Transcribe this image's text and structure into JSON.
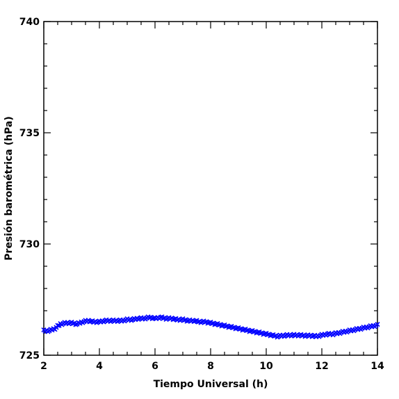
{
  "chart_data": {
    "type": "scatter",
    "title": "",
    "xlabel": "Tiempo Universal (h)",
    "ylabel": "Presión barométrica (hPa)",
    "xlim": [
      2,
      14
    ],
    "ylim": [
      725,
      740
    ],
    "xticks": [
      "2",
      "4",
      "6",
      "8",
      "10",
      "12",
      "14"
    ],
    "yticks": [
      "725",
      "730",
      "735",
      "740"
    ],
    "grid": false,
    "legend": "none",
    "marker": "x",
    "series": [
      {
        "color": "#0000ff",
        "points": [
          [
            2.0,
            726.1
          ],
          [
            2.2,
            726.1
          ],
          [
            2.4,
            726.2
          ],
          [
            2.6,
            726.4
          ],
          [
            2.8,
            726.45
          ],
          [
            3.0,
            726.45
          ],
          [
            3.2,
            726.4
          ],
          [
            3.4,
            726.5
          ],
          [
            3.6,
            726.55
          ],
          [
            3.8,
            726.5
          ],
          [
            4.0,
            726.5
          ],
          [
            4.2,
            726.55
          ],
          [
            4.4,
            726.55
          ],
          [
            4.6,
            726.55
          ],
          [
            4.8,
            726.55
          ],
          [
            5.0,
            726.6
          ],
          [
            5.2,
            726.6
          ],
          [
            5.4,
            726.65
          ],
          [
            5.6,
            726.65
          ],
          [
            5.8,
            726.7
          ],
          [
            6.0,
            726.65
          ],
          [
            6.2,
            726.7
          ],
          [
            6.4,
            726.65
          ],
          [
            6.6,
            726.65
          ],
          [
            6.8,
            726.6
          ],
          [
            7.0,
            726.6
          ],
          [
            7.2,
            726.55
          ],
          [
            7.4,
            726.55
          ],
          [
            7.6,
            726.5
          ],
          [
            7.8,
            726.5
          ],
          [
            8.0,
            726.45
          ],
          [
            8.2,
            726.4
          ],
          [
            8.4,
            726.35
          ],
          [
            8.6,
            726.3
          ],
          [
            8.8,
            726.25
          ],
          [
            9.0,
            726.2
          ],
          [
            9.2,
            726.15
          ],
          [
            9.4,
            726.1
          ],
          [
            9.6,
            726.05
          ],
          [
            9.8,
            726.0
          ],
          [
            10.0,
            725.95
          ],
          [
            10.2,
            725.9
          ],
          [
            10.4,
            725.85
          ],
          [
            10.6,
            725.88
          ],
          [
            10.8,
            725.9
          ],
          [
            11.0,
            725.9
          ],
          [
            11.2,
            725.9
          ],
          [
            11.4,
            725.88
          ],
          [
            11.6,
            725.88
          ],
          [
            11.8,
            725.85
          ],
          [
            12.0,
            725.9
          ],
          [
            12.2,
            725.95
          ],
          [
            12.4,
            725.95
          ],
          [
            12.6,
            726.0
          ],
          [
            12.8,
            726.05
          ],
          [
            13.0,
            726.1
          ],
          [
            13.2,
            726.15
          ],
          [
            13.4,
            726.2
          ],
          [
            13.6,
            726.25
          ],
          [
            13.8,
            726.3
          ],
          [
            14.0,
            726.35
          ]
        ]
      }
    ]
  }
}
